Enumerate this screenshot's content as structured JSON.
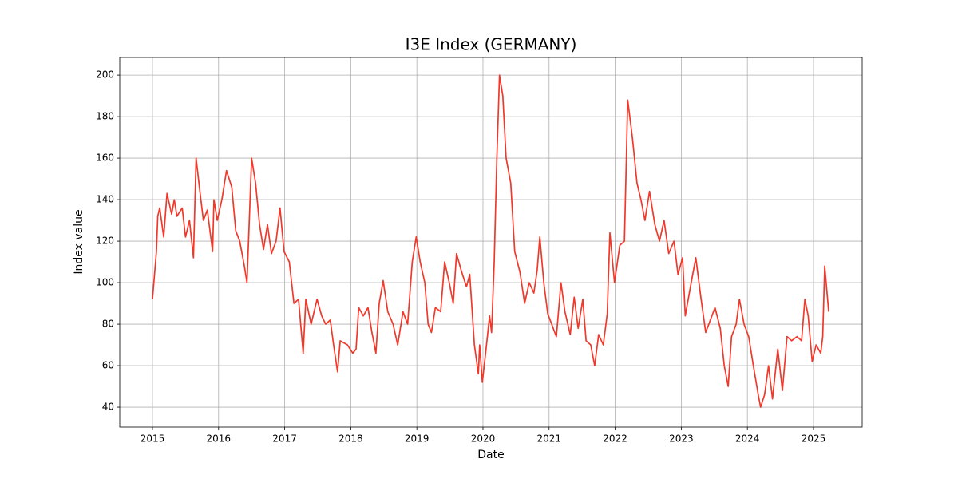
{
  "chart_data": {
    "type": "line",
    "title": "I3E Index (GERMANY)",
    "x_label": "Date",
    "y_label": "Index value",
    "x": [
      2015.0,
      2015.06,
      2015.08,
      2015.11,
      2015.17,
      2015.22,
      2015.29,
      2015.33,
      2015.37,
      2015.45,
      2015.5,
      2015.56,
      2015.62,
      2015.66,
      2015.71,
      2015.77,
      2015.83,
      2015.91,
      2015.93,
      2015.98,
      2016.05,
      2016.12,
      2016.2,
      2016.26,
      2016.32,
      2016.39,
      2016.43,
      2016.5,
      2016.56,
      2016.62,
      2016.68,
      2016.74,
      2016.8,
      2016.87,
      2016.93,
      2016.99,
      2017.07,
      2017.14,
      2017.21,
      2017.28,
      2017.32,
      2017.4,
      2017.49,
      2017.56,
      2017.62,
      2017.69,
      2017.74,
      2017.8,
      2017.84,
      2017.95,
      2018.03,
      2018.08,
      2018.12,
      2018.19,
      2018.26,
      2018.32,
      2018.38,
      2018.43,
      2018.49,
      2018.56,
      2018.64,
      2018.71,
      2018.79,
      2018.86,
      2018.93,
      2018.99,
      2019.05,
      2019.12,
      2019.17,
      2019.22,
      2019.28,
      2019.36,
      2019.42,
      2019.49,
      2019.55,
      2019.6,
      2019.67,
      2019.75,
      2019.8,
      2019.87,
      2019.93,
      2019.95,
      2019.99,
      2020.04,
      2020.1,
      2020.13,
      2020.17,
      2020.21,
      2020.25,
      2020.3,
      2020.35,
      2020.42,
      2020.48,
      2020.56,
      2020.63,
      2020.7,
      2020.77,
      2020.82,
      2020.86,
      2020.92,
      2020.98,
      2021.04,
      2021.11,
      2021.18,
      2021.24,
      2021.32,
      2021.38,
      2021.44,
      2021.51,
      2021.56,
      2021.63,
      2021.69,
      2021.75,
      2021.82,
      2021.88,
      2021.92,
      2021.99,
      2022.07,
      2022.14,
      2022.19,
      2022.26,
      2022.33,
      2022.39,
      2022.45,
      2022.52,
      2022.6,
      2022.67,
      2022.74,
      2022.81,
      2022.89,
      2022.95,
      2023.02,
      2023.06,
      2023.15,
      2023.22,
      2023.3,
      2023.37,
      2023.44,
      2023.51,
      2023.59,
      2023.65,
      2023.71,
      2023.76,
      2023.83,
      2023.88,
      2023.95,
      2024.02,
      2024.09,
      2024.17,
      2024.2,
      2024.26,
      2024.32,
      2024.38,
      2024.46,
      2024.53,
      2024.6,
      2024.67,
      2024.75,
      2024.82,
      2024.87,
      2024.92,
      2024.98,
      2025.04,
      2025.11,
      2025.14,
      2025.17,
      2025.23
    ],
    "series": [
      {
        "name": "I3E Index",
        "color": "#f0392b",
        "values": [
          92,
          115,
          132,
          136,
          122,
          143,
          133,
          140,
          132,
          136,
          122,
          130,
          112,
          160,
          146,
          130,
          135,
          115,
          140,
          130,
          140,
          154,
          146,
          125,
          120,
          108,
          100,
          160,
          148,
          128,
          116,
          128,
          114,
          120,
          136,
          115,
          110,
          90,
          92,
          66,
          92,
          80,
          92,
          84,
          80,
          82,
          70,
          57,
          72,
          70,
          66,
          68,
          88,
          84,
          88,
          76,
          66,
          90,
          101,
          86,
          80,
          70,
          86,
          80,
          110,
          122,
          110,
          100,
          80,
          76,
          88,
          86,
          110,
          100,
          90,
          114,
          106,
          98,
          104,
          70,
          56,
          70,
          52,
          66,
          84,
          76,
          110,
          160,
          200,
          190,
          160,
          148,
          115,
          105,
          90,
          100,
          95,
          106,
          122,
          100,
          85,
          80,
          74,
          100,
          86,
          75,
          93,
          78,
          92,
          72,
          70,
          60,
          75,
          70,
          85,
          124,
          100,
          118,
          120,
          188,
          170,
          148,
          140,
          130,
          144,
          128,
          120,
          130,
          114,
          120,
          104,
          112,
          84,
          100,
          112,
          92,
          76,
          82,
          88,
          78,
          60,
          50,
          74,
          80,
          92,
          80,
          74,
          60,
          45,
          40,
          46,
          60,
          44,
          68,
          48,
          74,
          72,
          74,
          72,
          92,
          84,
          62,
          70,
          66,
          74,
          108,
          86
        ]
      }
    ],
    "xlim": [
      2014.505,
      2025.737
    ],
    "xticks": [
      2015,
      2016,
      2017,
      2018,
      2019,
      2020,
      2021,
      2022,
      2023,
      2024,
      2025
    ],
    "ylim": [
      30.4,
      208.5
    ],
    "yticks": [
      40,
      60,
      80,
      100,
      120,
      140,
      160,
      180,
      200
    ],
    "grid": true
  }
}
